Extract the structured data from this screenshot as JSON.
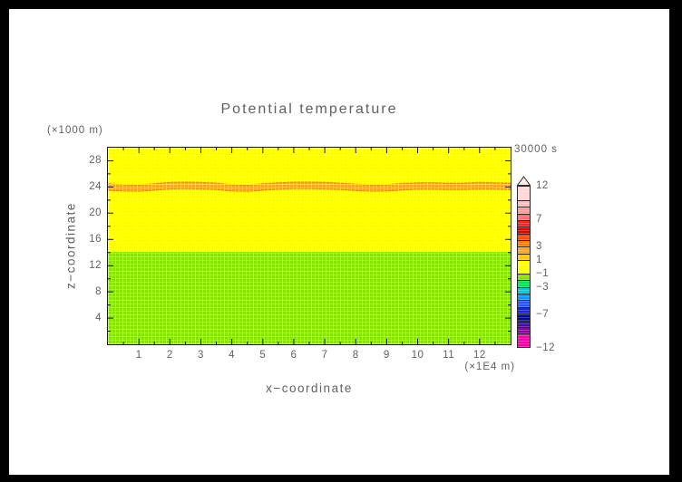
{
  "window": {
    "border_color": "#000000",
    "canvas_background": "#ffffff"
  },
  "labels": {
    "title": "Potential temperature",
    "time": "30000 s",
    "x_axis_title": "x−coordinate",
    "x_axis_unit": "(×1E4 m)",
    "y_axis_title": "z−coordinate",
    "y_axis_unit": "(×1000 m)"
  },
  "colorbar": {
    "min": -12,
    "max": 12,
    "overflow_cap_color": "#FFE9E9",
    "outline_color": "#2a2a2a",
    "tick_labels": [
      {
        "value": 12,
        "label": "12"
      },
      {
        "value": 7,
        "label": "7"
      },
      {
        "value": 3,
        "label": "3"
      },
      {
        "value": 1,
        "label": "1"
      },
      {
        "value": -1,
        "label": "−1"
      },
      {
        "value": -3,
        "label": "−3"
      },
      {
        "value": -7,
        "label": "−7"
      },
      {
        "value": -12,
        "label": "−12"
      }
    ],
    "segments": [
      {
        "from": 12,
        "to": 10,
        "color": "#FFD7D7"
      },
      {
        "from": 10,
        "to": 9,
        "color": "#FFBCBC"
      },
      {
        "from": 9,
        "to": 8,
        "color": "#FF9A9A"
      },
      {
        "from": 8,
        "to": 7,
        "color": "#FF6E6E"
      },
      {
        "from": 7,
        "to": 6,
        "color": "#FF2121"
      },
      {
        "from": 6,
        "to": 5,
        "color": "#E80000"
      },
      {
        "from": 5,
        "to": 4,
        "color": "#FF4A00"
      },
      {
        "from": 4,
        "to": 3,
        "color": "#FF7D00"
      },
      {
        "from": 3,
        "to": 2,
        "color": "#FFA41E"
      },
      {
        "from": 2,
        "to": 1,
        "color": "#FFC800"
      },
      {
        "from": 1,
        "to": -1,
        "color": "#FFFF00"
      },
      {
        "from": -1,
        "to": -2,
        "color": "#86E300"
      },
      {
        "from": -2,
        "to": -3,
        "color": "#00E65A"
      },
      {
        "from": -3,
        "to": -4,
        "color": "#00CBDC"
      },
      {
        "from": -4,
        "to": -5,
        "color": "#009BFF"
      },
      {
        "from": -5,
        "to": -6,
        "color": "#2B54FF"
      },
      {
        "from": -6,
        "to": -7,
        "color": "#1A23E0"
      },
      {
        "from": -7,
        "to": -8,
        "color": "#0008A0"
      },
      {
        "from": -8,
        "to": -9,
        "color": "#3D1296"
      },
      {
        "from": -9,
        "to": -10,
        "color": "#9000AA"
      },
      {
        "from": -10,
        "to": -12,
        "color": "#FF00AA"
      }
    ]
  },
  "chart_data": {
    "type": "heatmap",
    "title": "Potential temperature",
    "time_label": "30000 s",
    "x_axis": {
      "label": "x−coordinate",
      "unit": "(×1E4 m)",
      "range": [
        0,
        13
      ],
      "major_ticks": [
        1,
        2,
        3,
        4,
        5,
        6,
        7,
        8,
        9,
        10,
        11,
        12
      ],
      "minor_step": 0.5
    },
    "z_axis": {
      "label": "z−coordinate",
      "unit": "(×1000 m)",
      "range": [
        0,
        30
      ],
      "major_ticks": [
        4,
        8,
        12,
        16,
        20,
        24,
        28
      ],
      "minor_step": 2
    },
    "tick_style": {
      "direction": "inward",
      "major_len": 6,
      "minor_len": 3,
      "color": "#111111",
      "all_four_sides": true
    },
    "field_regions": [
      {
        "name": "upper-layer",
        "z_from": 14.1,
        "z_to": 30,
        "color": "#FFFF00",
        "value_range": [
          -1,
          1
        ]
      },
      {
        "name": "lower-layer",
        "z_from": 0,
        "z_to": 14.1,
        "color": "#86E300",
        "value_range": [
          -2,
          -1
        ]
      }
    ],
    "inversion_band": {
      "name": "inversion-band",
      "color": "#F7A81E",
      "edge_color": "#E08900",
      "thickness": 1.0,
      "value_range": [
        2,
        3
      ],
      "x": [
        0,
        0.5,
        1,
        1.5,
        2,
        2.5,
        3,
        3.5,
        4,
        4.5,
        5,
        5.5,
        6,
        6.5,
        7,
        7.5,
        8,
        8.5,
        9,
        9.5,
        10,
        10.5,
        11,
        11.5,
        12,
        12.5,
        13
      ],
      "z_center": [
        24.0,
        23.85,
        23.8,
        24.0,
        24.2,
        24.25,
        24.2,
        24.1,
        23.85,
        23.75,
        24.0,
        24.15,
        24.25,
        24.25,
        24.2,
        24.1,
        23.95,
        23.8,
        23.85,
        24.05,
        24.15,
        24.15,
        24.1,
        24.1,
        24.2,
        24.15,
        24.1
      ]
    }
  }
}
